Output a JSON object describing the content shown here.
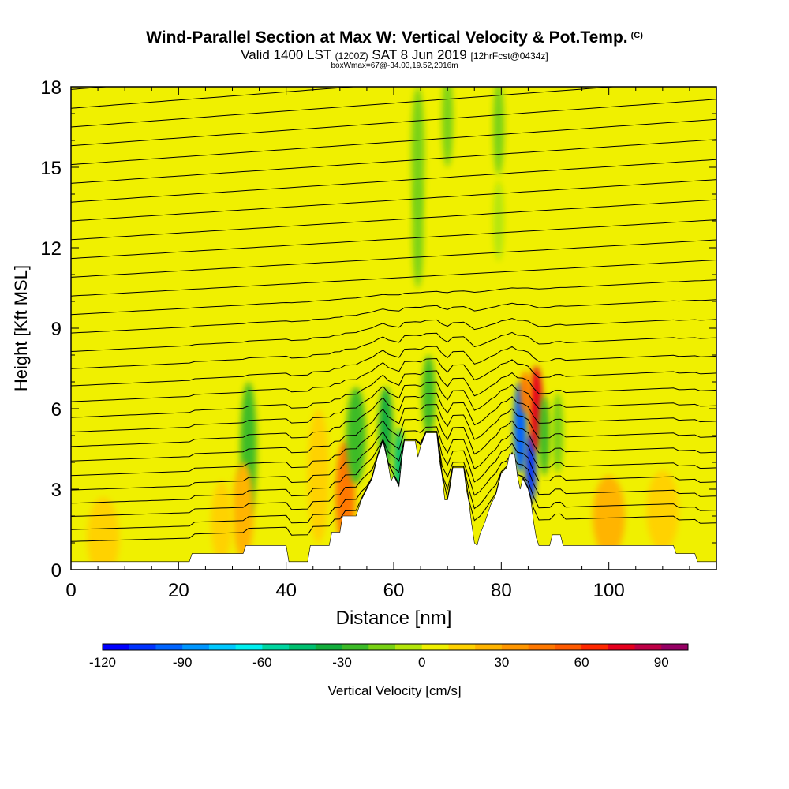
{
  "chart_data": {
    "type": "heatmap",
    "title": "Wind-Parallel Section at Max W: Vertical Velocity & Pot.Temp.",
    "title_mark": "(C)",
    "subtitle_main_a": "Valid 1400 LST",
    "subtitle_utc": "(1200Z)",
    "subtitle_main_b": "SAT 8 Jun 2019",
    "subtitle_fcst": "[12hrFcst@0434z]",
    "subtitle_box": "boxWmax=67@-34.03,19.52,2016m",
    "xlabel": "Distance [nm]",
    "ylabel": "Height [Kft MSL]",
    "xlim": [
      0,
      120
    ],
    "ylim": [
      0,
      18
    ],
    "xticks": [
      0,
      20,
      40,
      60,
      80,
      100
    ],
    "yticks": [
      0,
      3,
      6,
      9,
      12,
      15,
      18
    ],
    "background_value": 5,
    "colorbar": {
      "label": "Vertical Velocity [cm/s]",
      "range": [
        -120,
        100
      ],
      "step": 10,
      "ticks": [
        -120,
        -90,
        -60,
        -30,
        0,
        30,
        60,
        90
      ],
      "colors": [
        "#0000ff",
        "#0032ff",
        "#0064ff",
        "#0096ff",
        "#00c8ff",
        "#00f0f0",
        "#00d6a0",
        "#00c070",
        "#12ad3c",
        "#3cbb28",
        "#78d214",
        "#b4e60a",
        "#f0f000",
        "#ffd200",
        "#ffb400",
        "#ff9600",
        "#ff7800",
        "#ff5a00",
        "#ff2800",
        "#e6001e",
        "#be0046",
        "#960064"
      ]
    },
    "terrain": [
      [
        0,
        0.3
      ],
      [
        22,
        0.3
      ],
      [
        22.5,
        0.6
      ],
      [
        32,
        0.6
      ],
      [
        32.5,
        0.9
      ],
      [
        40,
        0.9
      ],
      [
        40.5,
        0.3
      ],
      [
        44,
        0.3
      ],
      [
        44.5,
        0.9
      ],
      [
        48,
        0.9
      ],
      [
        48.5,
        1.4
      ],
      [
        50,
        1.4
      ],
      [
        50.5,
        2.0
      ],
      [
        53,
        2.0
      ],
      [
        54,
        2.6
      ],
      [
        56,
        3.4
      ],
      [
        57,
        4.2
      ],
      [
        58,
        4.8
      ],
      [
        59,
        3.9
      ],
      [
        59.5,
        3.3
      ],
      [
        60,
        3.5
      ],
      [
        61,
        3.1
      ],
      [
        61.5,
        4.1
      ],
      [
        62,
        4.8
      ],
      [
        64,
        4.8
      ],
      [
        64.5,
        4.2
      ],
      [
        65,
        4.6
      ],
      [
        66,
        5.1
      ],
      [
        68,
        5.1
      ],
      [
        68.5,
        4.1
      ],
      [
        69,
        3.5
      ],
      [
        69.5,
        2.6
      ],
      [
        70,
        2.6
      ],
      [
        70.5,
        3.1
      ],
      [
        71,
        3.8
      ],
      [
        73,
        3.8
      ],
      [
        73.5,
        3.0
      ],
      [
        74,
        2.5
      ],
      [
        74.5,
        1.7
      ],
      [
        75,
        1.0
      ],
      [
        75.5,
        0.9
      ],
      [
        76,
        1.3
      ],
      [
        77,
        1.8
      ],
      [
        78,
        2.4
      ],
      [
        79,
        2.8
      ],
      [
        80,
        3.6
      ],
      [
        81,
        3.8
      ],
      [
        81.5,
        4.3
      ],
      [
        82.5,
        4.3
      ],
      [
        83,
        3.5
      ],
      [
        83.5,
        3.0
      ],
      [
        84,
        3.4
      ],
      [
        85,
        3.0
      ],
      [
        85.5,
        2.6
      ],
      [
        86,
        1.8
      ],
      [
        86.5,
        1.2
      ],
      [
        87,
        0.9
      ],
      [
        89,
        0.9
      ],
      [
        89.5,
        1.3
      ],
      [
        91,
        1.3
      ],
      [
        91.5,
        0.9
      ],
      [
        112,
        0.9
      ],
      [
        112.5,
        0.6
      ],
      [
        116,
        0.6
      ],
      [
        116.5,
        0.3
      ],
      [
        120,
        0.3
      ]
    ],
    "features": [
      {
        "x": 33,
        "y": 4.5,
        "w": 1.5,
        "h": 2.5,
        "value": -25
      },
      {
        "x": 32,
        "y": 2.2,
        "w": 2.0,
        "h": 1.8,
        "value": 20
      },
      {
        "x": 51,
        "y": 2.8,
        "w": 1.8,
        "h": 2.0,
        "value": 45
      },
      {
        "x": 53,
        "y": 5.0,
        "w": 1.8,
        "h": 1.8,
        "value": -30
      },
      {
        "x": 58.5,
        "y": 5.3,
        "w": 1.3,
        "h": 1.5,
        "value": -35
      },
      {
        "x": 61,
        "y": 3.8,
        "w": 1.0,
        "h": 1.5,
        "value": -45
      },
      {
        "x": 64.5,
        "y": 15.5,
        "w": 1.2,
        "h": 2.5,
        "value": -18
      },
      {
        "x": 64.5,
        "y": 12.5,
        "w": 1.0,
        "h": 2.0,
        "value": -14
      },
      {
        "x": 66.5,
        "y": 6.5,
        "w": 1.2,
        "h": 1.5,
        "value": -30
      },
      {
        "x": 70,
        "y": 16.8,
        "w": 1.0,
        "h": 1.8,
        "value": -14
      },
      {
        "x": 79.5,
        "y": 16.5,
        "w": 1.0,
        "h": 1.8,
        "value": -14
      },
      {
        "x": 79.5,
        "y": 13.0,
        "w": 1.0,
        "h": 1.5,
        "value": -10
      },
      {
        "x": 83.5,
        "y": 5.3,
        "w": 1.2,
        "h": 1.7,
        "value": -100
      },
      {
        "x": 85.5,
        "y": 3.8,
        "w": 1.0,
        "h": 1.3,
        "value": -110
      },
      {
        "x": 86.5,
        "y": 6.0,
        "w": 1.2,
        "h": 1.6,
        "value": 70
      },
      {
        "x": 84.5,
        "y": 6.6,
        "w": 1.0,
        "h": 0.8,
        "value": 40
      },
      {
        "x": 88,
        "y": 5.0,
        "w": 1.0,
        "h": 1.5,
        "value": -25
      },
      {
        "x": 90.5,
        "y": 5.1,
        "w": 1.0,
        "h": 1.5,
        "value": -20
      },
      {
        "x": 100,
        "y": 2.0,
        "w": 3.0,
        "h": 1.5,
        "value": 20
      },
      {
        "x": 110,
        "y": 2.2,
        "w": 3.0,
        "h": 1.5,
        "value": 18
      },
      {
        "x": 28,
        "y": 1.8,
        "w": 2.0,
        "h": 1.5,
        "value": 15
      },
      {
        "x": 46,
        "y": 3.5,
        "w": 2.0,
        "h": 2.5,
        "value": 18
      },
      {
        "x": 6,
        "y": 1.2,
        "w": 3.0,
        "h": 1.5,
        "value": 14
      }
    ],
    "theta_contours": [
      0.9,
      1.35,
      1.85,
      2.35,
      2.85,
      3.4,
      3.95,
      4.5,
      5.05,
      5.6,
      6.2,
      6.8,
      7.45,
      8.1,
      8.8,
      9.5,
      10.2,
      10.9,
      11.6,
      12.3,
      13.0,
      13.7,
      14.4,
      15.1,
      15.8,
      16.5,
      17.2,
      17.9
    ],
    "theta_slope": 0.0105
  }
}
